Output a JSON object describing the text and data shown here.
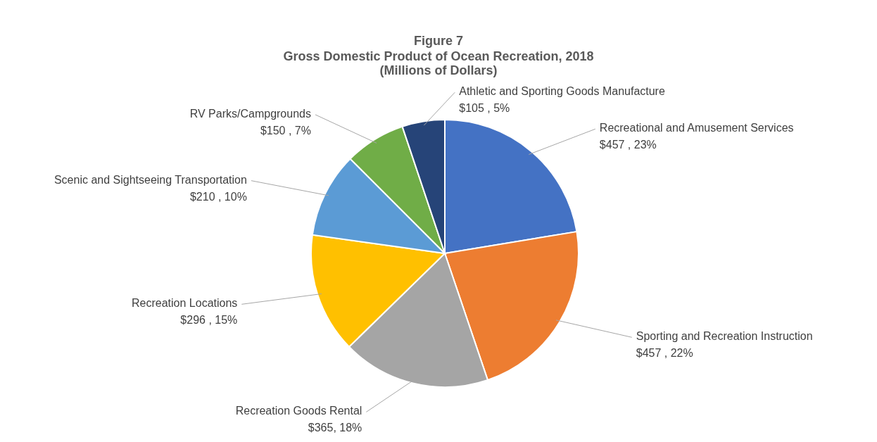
{
  "chart_data": {
    "type": "pie",
    "title": "Figure 7",
    "subtitle": "Gross Domestic Product of Ocean Recreation, 2018 (Millions of Dollars)",
    "categories": [
      "Recreational and Amusement Services",
      "Sporting and Recreation Instruction",
      "Recreation Goods Rental",
      "Recreation Locations",
      "Scenic and Sightseeing Transportation",
      "RV Parks/Campgrounds",
      "Athletic and Sporting Goods Manufacture"
    ],
    "values": [
      457,
      457,
      365,
      296,
      210,
      150,
      105
    ],
    "value_labels": [
      "$457 , 23%",
      "$457 , 22%",
      "$365, 18%",
      "$296 , 15%",
      "$210 , 10%",
      "$150 , 7%",
      "$105 , 5%"
    ],
    "colors": [
      "#4472c4",
      "#ed7d31",
      "#a5a5a5",
      "#ffc000",
      "#5b9bd5",
      "#70ad47",
      "#264478"
    ],
    "legend": false
  }
}
